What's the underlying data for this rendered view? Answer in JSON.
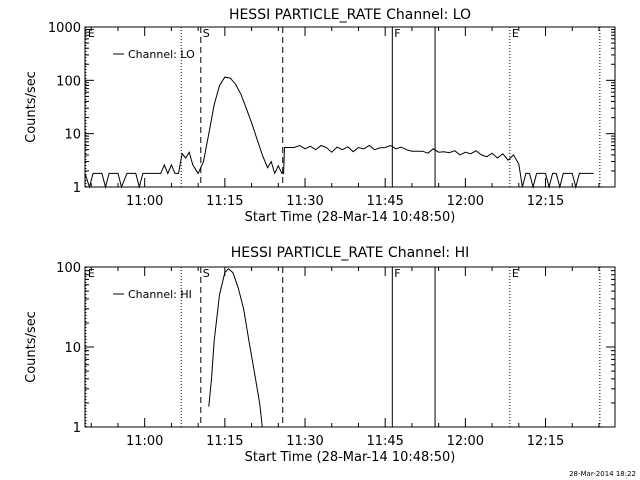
{
  "timestamp": "28-Mar-2014 18:22",
  "chart_data": [
    {
      "type": "line",
      "title": "HESSI PARTICLE_RATE Channel: LO",
      "xlabel": "Start Time (28-Mar-14 10:48:50)",
      "ylabel": "Counts/sec",
      "y_scale": "log",
      "ylim": [
        1,
        1000
      ],
      "xlim": [
        "10:48:50",
        "12:28:00"
      ],
      "x_ticks": [
        "11:00",
        "11:15",
        "11:30",
        "11:45",
        "12:00",
        "12:15"
      ],
      "y_ticks": [
        "1",
        "10",
        "100",
        "1000"
      ],
      "legend": {
        "entries": [
          "Channel: LO"
        ],
        "placement": "top-left"
      },
      "series": [
        {
          "name": "Channel: LO",
          "points": [
            [
              "10:48:50",
              1.8
            ],
            [
              "10:49:40",
              1
            ],
            [
              "10:50:20",
              1.8
            ],
            [
              "10:52:00",
              1.8
            ],
            [
              "10:52:40",
              1
            ],
            [
              "10:53:20",
              1.8
            ],
            [
              "10:55:00",
              1.8
            ],
            [
              "10:55:40",
              1
            ],
            [
              "10:56:40",
              1.8
            ],
            [
              "10:58:20",
              1.8
            ],
            [
              "10:59:00",
              1
            ],
            [
              "10:59:40",
              1.8
            ],
            [
              "11:03:00",
              1.8
            ],
            [
              "11:03:40",
              2.6
            ],
            [
              "11:04:20",
              1.8
            ],
            [
              "11:05:00",
              2.6
            ],
            [
              "11:05:40",
              1.8
            ],
            [
              "11:06:20",
              1.8
            ],
            [
              "11:07:00",
              4.2
            ],
            [
              "11:07:40",
              3.5
            ],
            [
              "11:08:20",
              4.5
            ],
            [
              "11:09:00",
              2.6
            ],
            [
              "11:10:00",
              1.8
            ],
            [
              "11:11:00",
              3
            ],
            [
              "11:12:00",
              10
            ],
            [
              "11:13:00",
              35
            ],
            [
              "11:14:00",
              80
            ],
            [
              "11:15:00",
              115
            ],
            [
              "11:16:00",
              110
            ],
            [
              "11:17:00",
              85
            ],
            [
              "11:18:00",
              55
            ],
            [
              "11:19:00",
              30
            ],
            [
              "11:20:00",
              16
            ],
            [
              "11:21:00",
              8
            ],
            [
              "11:22:00",
              4
            ],
            [
              "11:23:00",
              2.3
            ],
            [
              "11:23:40",
              3
            ],
            [
              "11:24:20",
              1.8
            ],
            [
              "11:25:00",
              2.5
            ],
            [
              "11:25:40",
              1.8
            ],
            [
              "11:26:00",
              1.8
            ],
            [
              "11:26:10",
              5.5
            ],
            [
              "11:28:00",
              5.5
            ],
            [
              "11:29:00",
              6
            ],
            [
              "11:30:00",
              5.2
            ],
            [
              "11:31:00",
              5.8
            ],
            [
              "11:32:00",
              5
            ],
            [
              "11:33:00",
              6
            ],
            [
              "11:34:00",
              5.5
            ],
            [
              "11:35:00",
              4.5
            ],
            [
              "11:36:00",
              5.6
            ],
            [
              "11:37:00",
              5
            ],
            [
              "11:38:00",
              5.7
            ],
            [
              "11:39:00",
              4.6
            ],
            [
              "11:40:00",
              5.5
            ],
            [
              "11:41:00",
              5.2
            ],
            [
              "11:42:00",
              6
            ],
            [
              "11:43:00",
              5
            ],
            [
              "11:44:00",
              5.4
            ],
            [
              "11:45:00",
              5.5
            ],
            [
              "11:46:00",
              6
            ],
            [
              "11:47:00",
              5.2
            ],
            [
              "11:48:00",
              5.6
            ],
            [
              "11:49:00",
              5
            ],
            [
              "11:50:00",
              4.7
            ],
            [
              "11:52:00",
              4.7
            ],
            [
              "11:53:00",
              4.3
            ],
            [
              "11:54:00",
              5.2
            ],
            [
              "11:55:00",
              4.5
            ],
            [
              "11:56:00",
              4.6
            ],
            [
              "11:57:00",
              4.4
            ],
            [
              "11:58:00",
              4.8
            ],
            [
              "11:59:00",
              4
            ],
            [
              "12:00:00",
              4.5
            ],
            [
              "12:01:00",
              4.2
            ],
            [
              "12:02:00",
              4.8
            ],
            [
              "12:03:00",
              4
            ],
            [
              "12:04:00",
              3.7
            ],
            [
              "12:05:00",
              4.3
            ],
            [
              "12:06:00",
              3.5
            ],
            [
              "12:07:00",
              4.2
            ],
            [
              "12:08:00",
              3.2
            ],
            [
              "12:09:00",
              4
            ],
            [
              "12:10:00",
              2.7
            ],
            [
              "12:10:40",
              1
            ],
            [
              "12:11:20",
              1.8
            ],
            [
              "12:12:00",
              1.8
            ],
            [
              "12:12:40",
              1
            ],
            [
              "12:13:20",
              1.8
            ],
            [
              "12:15:00",
              1.8
            ],
            [
              "12:15:40",
              1
            ],
            [
              "12:16:20",
              1.8
            ],
            [
              "12:17:00",
              1.8
            ],
            [
              "12:17:40",
              1
            ],
            [
              "12:18:20",
              1.8
            ],
            [
              "12:20:00",
              1.8
            ],
            [
              "12:20:40",
              1
            ],
            [
              "12:21:20",
              1.8
            ],
            [
              "12:24:00",
              1.8
            ]
          ]
        }
      ],
      "markers": [
        {
          "time": "10:49:00",
          "label": "E",
          "style": "dotted"
        },
        {
          "time": "11:06:50",
          "label": "",
          "style": "dotted"
        },
        {
          "time": "11:10:30",
          "label": "S",
          "style": "dashed"
        },
        {
          "time": "11:25:50",
          "label": "",
          "style": "dashed"
        },
        {
          "time": "11:46:20",
          "label": "F",
          "style": "solid"
        },
        {
          "time": "11:54:20",
          "label": "",
          "style": "solid"
        },
        {
          "time": "12:08:20",
          "label": "E",
          "style": "dotted"
        },
        {
          "time": "12:25:10",
          "label": "",
          "style": "dotted"
        }
      ]
    },
    {
      "type": "line",
      "title": "HESSI PARTICLE_RATE Channel: HI",
      "xlabel": "Start Time (28-Mar-14 10:48:50)",
      "ylabel": "Counts/sec",
      "y_scale": "log",
      "ylim": [
        1,
        100
      ],
      "xlim": [
        "10:48:50",
        "12:28:00"
      ],
      "x_ticks": [
        "11:00",
        "11:15",
        "11:30",
        "11:45",
        "12:00",
        "12:15"
      ],
      "y_ticks": [
        "1",
        "10",
        "100"
      ],
      "legend": {
        "entries": [
          "Channel: HI"
        ],
        "placement": "top-left"
      },
      "series": [
        {
          "name": "Channel: HI",
          "points": [
            [
              "11:12:00",
              1.8
            ],
            [
              "11:12:30",
              4
            ],
            [
              "11:13:00",
              12
            ],
            [
              "11:14:00",
              45
            ],
            [
              "11:15:00",
              85
            ],
            [
              "11:15:40",
              95
            ],
            [
              "11:16:30",
              85
            ],
            [
              "11:17:30",
              55
            ],
            [
              "11:18:30",
              30
            ],
            [
              "11:19:30",
              12
            ],
            [
              "11:20:30",
              5
            ],
            [
              "11:21:30",
              2
            ],
            [
              "11:22:00",
              1
            ]
          ]
        }
      ],
      "markers": [
        {
          "time": "10:49:00",
          "label": "E",
          "style": "dotted"
        },
        {
          "time": "11:06:50",
          "label": "",
          "style": "dotted"
        },
        {
          "time": "11:10:30",
          "label": "S",
          "style": "dashed"
        },
        {
          "time": "11:25:50",
          "label": "",
          "style": "dashed"
        },
        {
          "time": "11:46:20",
          "label": "F",
          "style": "solid"
        },
        {
          "time": "11:54:20",
          "label": "",
          "style": "solid"
        },
        {
          "time": "12:08:20",
          "label": "E",
          "style": "dotted"
        },
        {
          "time": "12:25:10",
          "label": "",
          "style": "dotted"
        }
      ]
    }
  ]
}
